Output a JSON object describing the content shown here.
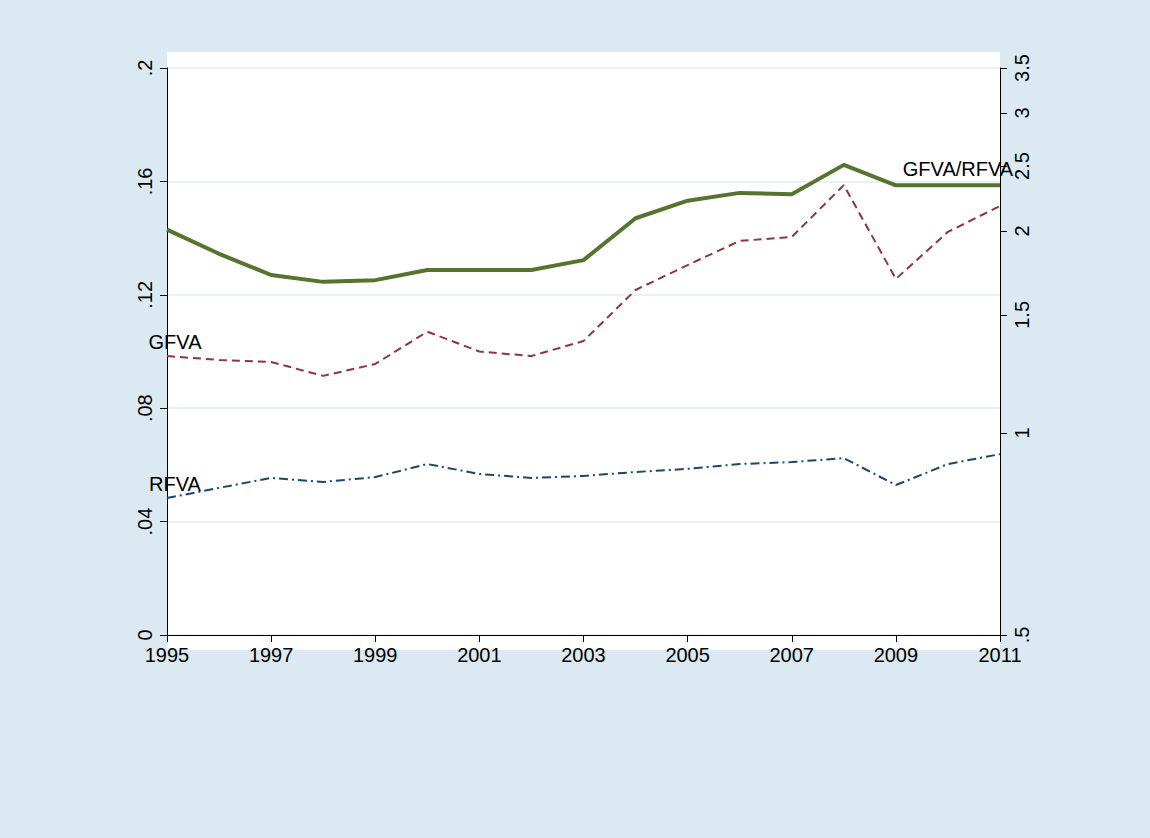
{
  "chart_data": {
    "type": "line",
    "x": [
      1995,
      1996,
      1997,
      1998,
      1999,
      2000,
      2001,
      2002,
      2003,
      2004,
      2005,
      2006,
      2007,
      2008,
      2009,
      2010,
      2011
    ],
    "xlim": [
      1995,
      2011
    ],
    "xticks": [
      1995,
      1997,
      1999,
      2001,
      2003,
      2005,
      2007,
      2009,
      2011
    ],
    "ylim": [
      0,
      0.2
    ],
    "yticks": [
      0,
      {
        "value": 0.04,
        "label": ".04"
      },
      {
        "value": 0.08,
        "label": ".08"
      },
      {
        "value": 0.12,
        "label": ".12"
      },
      {
        "value": 0.16,
        "label": ".16"
      },
      {
        "value": 0.2,
        "label": ".2"
      }
    ],
    "y2lim": [
      0.5,
      3.5
    ],
    "y2ticks": [
      {
        "value": 0.5,
        "label": ".5"
      },
      1,
      1.5,
      2,
      2.5,
      3,
      3.5
    ],
    "log": "y2",
    "grid": true,
    "series": [
      {
        "name": "GFVA",
        "color": "#90353b",
        "line_style": "dashed",
        "values": [
          0.0984,
          0.097,
          0.0963,
          0.0914,
          0.0956,
          0.107,
          0.1,
          0.0984,
          0.1037,
          0.1217,
          0.1305,
          0.139,
          0.1404,
          0.1587,
          0.1256,
          0.1422,
          0.1513
        ]
      },
      {
        "name": "RFVA",
        "color": "#1a476f",
        "line_style": "dashdot",
        "values": [
          0.0483,
          0.0519,
          0.0554,
          0.054,
          0.0557,
          0.0603,
          0.0568,
          0.0554,
          0.0561,
          0.0575,
          0.0586,
          0.0603,
          0.061,
          0.0624,
          0.0529,
          0.0603,
          0.0638
        ]
      },
      {
        "name": "GFVA/RFVA",
        "color": "#55752f",
        "line_style": "solid",
        "axis": "y2",
        "values": [
          2.01,
          1.85,
          1.72,
          1.68,
          1.69,
          1.75,
          1.75,
          1.75,
          1.81,
          2.09,
          2.22,
          2.28,
          2.27,
          2.51,
          2.34,
          2.34,
          2.34
        ]
      }
    ]
  }
}
